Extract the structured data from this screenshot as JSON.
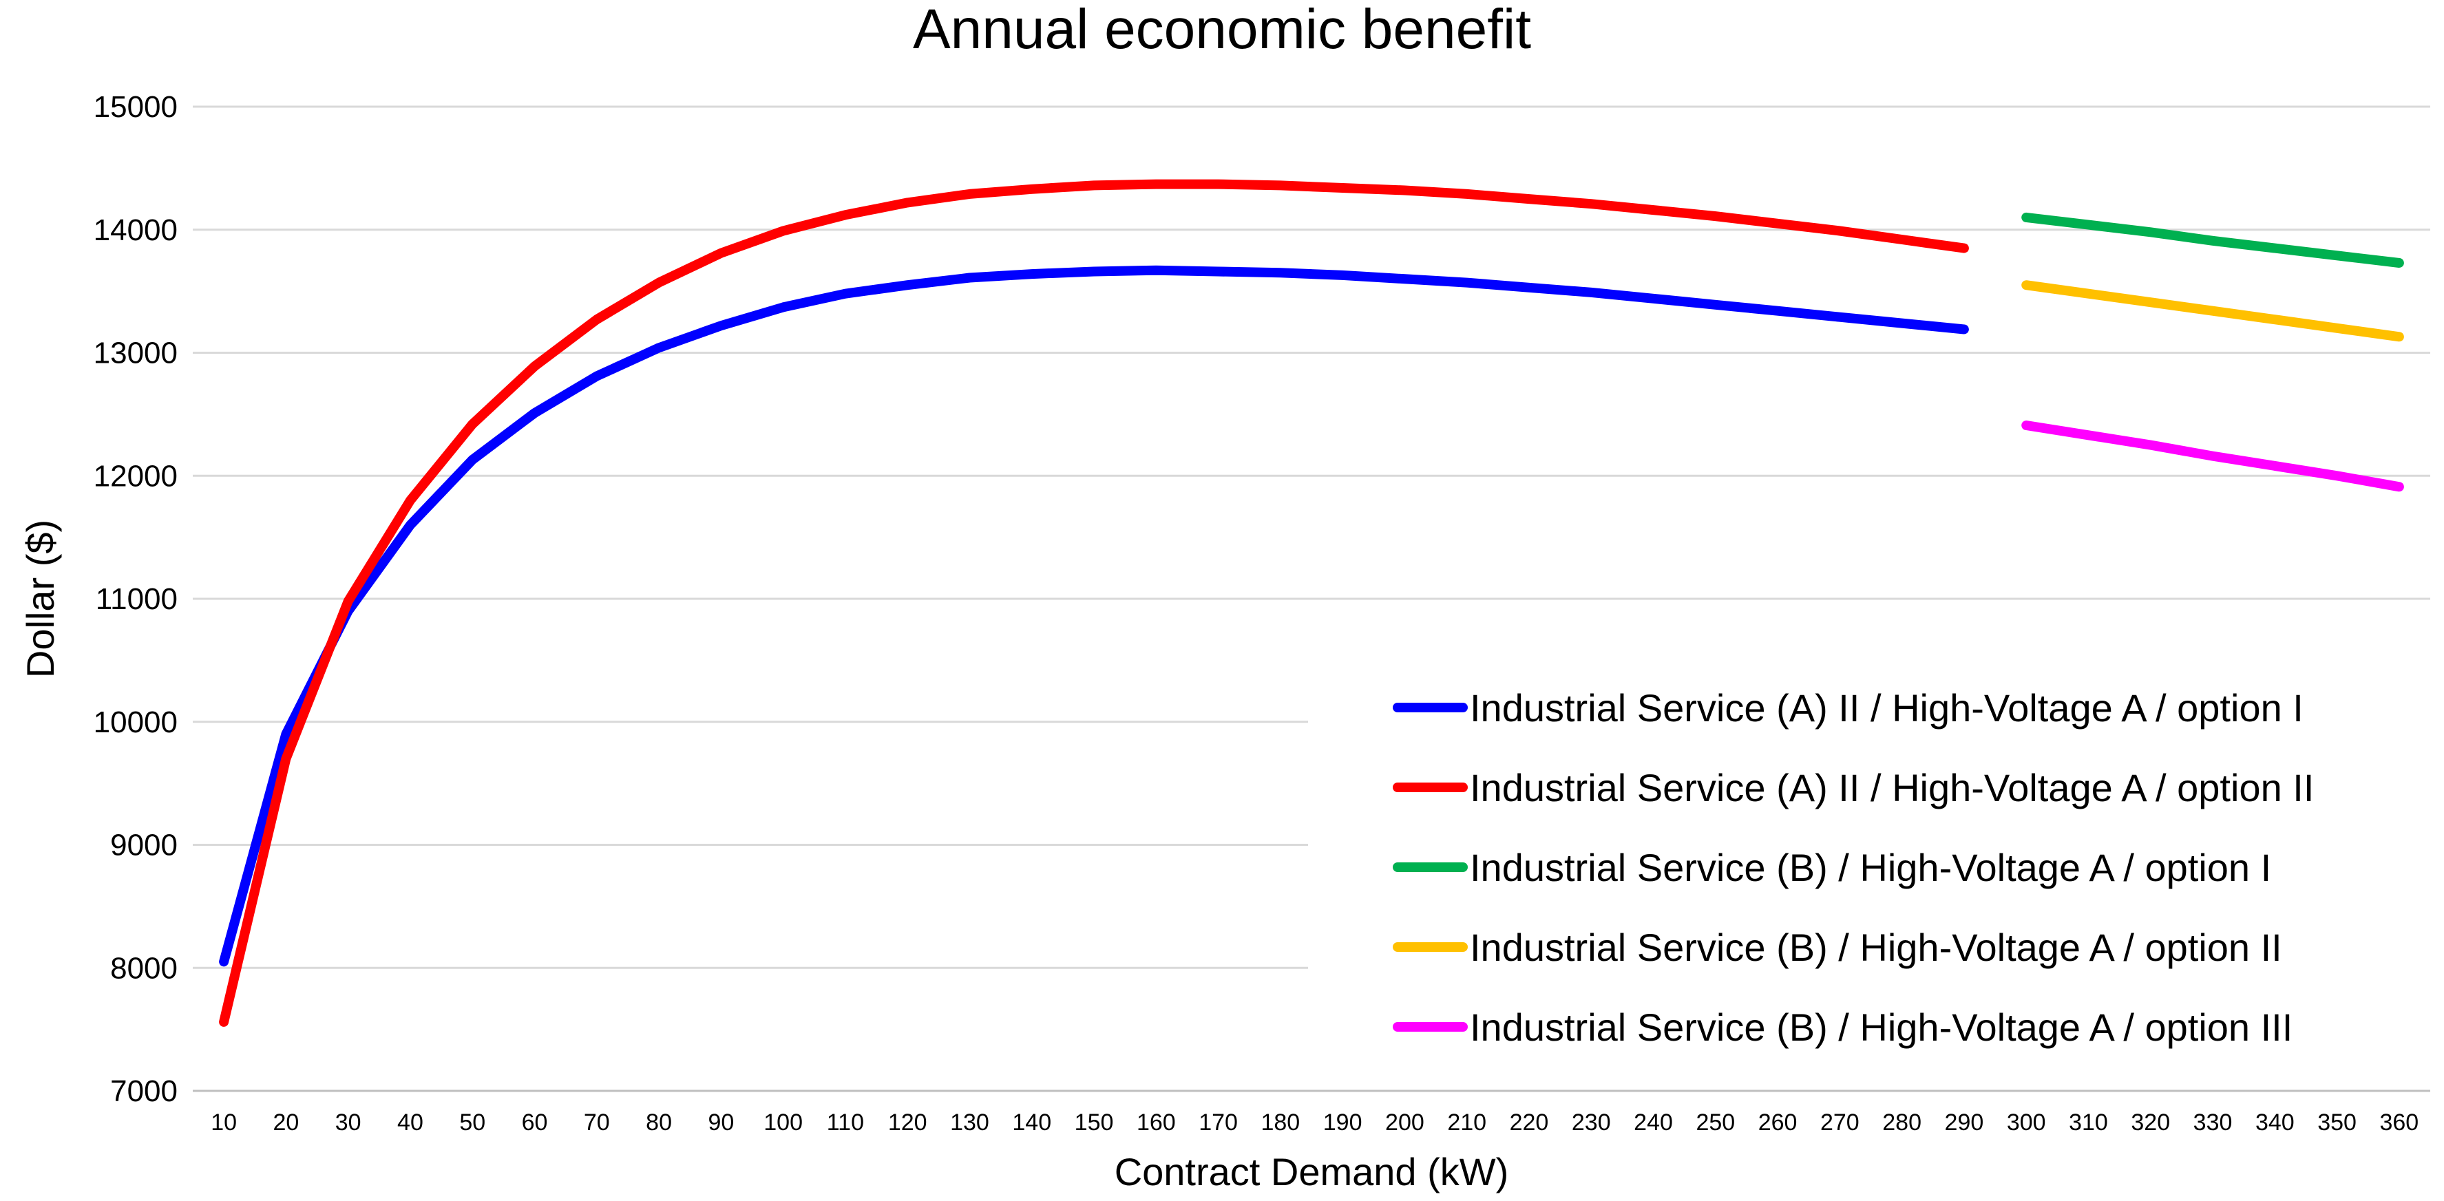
{
  "chart_data": {
    "type": "line",
    "title": "Annual economic benefit",
    "xlabel": "Contract Demand (kW)",
    "ylabel": "Dollar ($)",
    "ylim": [
      7000,
      15000
    ],
    "yticks": [
      7000,
      8000,
      9000,
      10000,
      11000,
      12000,
      13000,
      14000,
      15000
    ],
    "categories": [
      "10",
      "20",
      "30",
      "40",
      "50",
      "60",
      "70",
      "80",
      "90",
      "100",
      "110",
      "120",
      "130",
      "140",
      "150",
      "160",
      "170",
      "180",
      "190",
      "200",
      "210",
      "220",
      "230",
      "240",
      "250",
      "260",
      "270",
      "280",
      "290",
      "300",
      "310",
      "320",
      "330",
      "340",
      "350",
      "360"
    ],
    "grid": true,
    "legend_position": "bottom-right",
    "series": [
      {
        "name": "Industrial Service (A) II / High-Voltage A / option I",
        "color": "#0000FF",
        "x": [
          10,
          20,
          30,
          40,
          50,
          60,
          70,
          80,
          90,
          100,
          110,
          120,
          130,
          140,
          150,
          160,
          170,
          180,
          190,
          200,
          210,
          220,
          230,
          240,
          250,
          260,
          270,
          280,
          290
        ],
        "values": [
          8050,
          9900,
          10900,
          11600,
          12130,
          12510,
          12810,
          13040,
          13220,
          13370,
          13480,
          13550,
          13610,
          13640,
          13660,
          13670,
          13660,
          13650,
          13630,
          13600,
          13570,
          13530,
          13490,
          13440,
          13390,
          13340,
          13290,
          13240,
          13190
        ]
      },
      {
        "name": "Industrial Service (A) II / High-Voltage A / option II",
        "color": "#FF0000",
        "x": [
          10,
          20,
          30,
          40,
          50,
          60,
          70,
          80,
          90,
          100,
          110,
          120,
          130,
          140,
          150,
          160,
          170,
          180,
          190,
          200,
          210,
          220,
          230,
          240,
          250,
          260,
          270,
          280,
          290
        ],
        "values": [
          7560,
          9700,
          10980,
          11800,
          12420,
          12890,
          13270,
          13570,
          13810,
          13990,
          14120,
          14220,
          14290,
          14330,
          14360,
          14370,
          14370,
          14360,
          14340,
          14320,
          14290,
          14250,
          14210,
          14160,
          14110,
          14050,
          13990,
          13920,
          13850
        ]
      },
      {
        "name": "Industrial Service (B) / High-Voltage A / option I",
        "color": "#00B050",
        "x": [
          300,
          310,
          320,
          330,
          340,
          350,
          360
        ],
        "values": [
          14100,
          14040,
          13980,
          13910,
          13850,
          13790,
          13730
        ]
      },
      {
        "name": "Industrial Service (B) / High-Voltage A / option II",
        "color": "#FFC000",
        "x": [
          300,
          310,
          320,
          330,
          340,
          350,
          360
        ],
        "values": [
          13550,
          13480,
          13410,
          13340,
          13270,
          13200,
          13130
        ]
      },
      {
        "name": "Industrial Service (B) / High-Voltage A / option III",
        "color": "#FF00FF",
        "x": [
          300,
          310,
          320,
          330,
          340,
          350,
          360
        ],
        "values": [
          12410,
          12330,
          12250,
          12160,
          12080,
          12000,
          11910
        ]
      }
    ]
  }
}
